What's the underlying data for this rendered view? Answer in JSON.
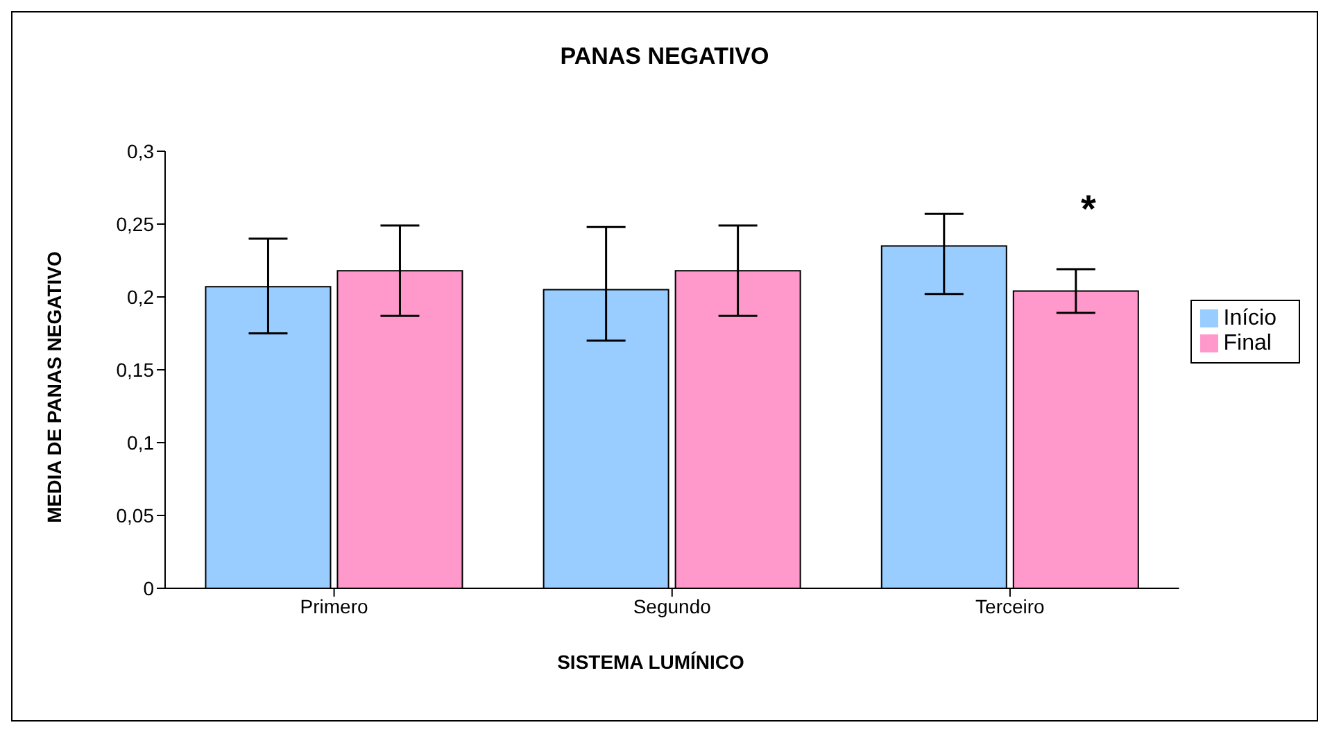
{
  "chart_data": {
    "type": "bar",
    "title": "PANAS NEGATIVO",
    "xlabel": "SISTEMA LUMÍNICO",
    "ylabel": "MEDIA DE PANAS NEGATIVO",
    "categories": [
      "Primero",
      "Segundo",
      "Terceiro"
    ],
    "series": [
      {
        "name": "Início",
        "color": "#99ccff",
        "values": [
          0.207,
          0.205,
          0.235
        ],
        "errors": [
          [
            0.175,
            0.24
          ],
          [
            0.17,
            0.248
          ],
          [
            0.202,
            0.257
          ]
        ]
      },
      {
        "name": "Final",
        "color": "#ff99cc",
        "values": [
          0.218,
          0.218,
          0.204
        ],
        "errors": [
          [
            0.187,
            0.249
          ],
          [
            0.187,
            0.249
          ],
          [
            0.189,
            0.219
          ]
        ]
      }
    ],
    "ylim": [
      0,
      0.3
    ],
    "yticks": [
      {
        "value": 0,
        "label": "0"
      },
      {
        "value": 0.05,
        "label": "0,05"
      },
      {
        "value": 0.1,
        "label": "0,1"
      },
      {
        "value": 0.15,
        "label": "0,15"
      },
      {
        "value": 0.2,
        "label": "0,2"
      },
      {
        "value": 0.25,
        "label": "0,25"
      },
      {
        "value": 0.3,
        "label": "0,3"
      }
    ],
    "annotations": [
      "*"
    ],
    "grid": false,
    "legend": "right"
  }
}
